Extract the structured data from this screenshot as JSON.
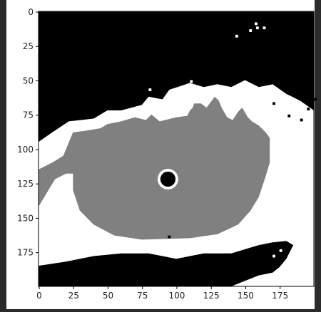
{
  "chart_data": {
    "type": "heatmap",
    "title": "",
    "xlabel": "",
    "ylabel": "",
    "xlim": [
      0,
      200
    ],
    "ylim": [
      200,
      0
    ],
    "xticks": [
      0,
      25,
      50,
      75,
      100,
      125,
      150,
      175
    ],
    "yticks": [
      0,
      25,
      50,
      75,
      100,
      125,
      150,
      175
    ],
    "grid": false,
    "classes": [
      {
        "value": 0,
        "color": "#000000"
      },
      {
        "value": 1,
        "color": "#808080"
      },
      {
        "value": 2,
        "color": "#ffffff"
      }
    ],
    "regions": {
      "upper_black": "image top rows to white band boundary",
      "white_band": [
        [
          0,
          95
        ],
        [
          10,
          88
        ],
        [
          22,
          80
        ],
        [
          40,
          78
        ],
        [
          50,
          72
        ],
        [
          60,
          72
        ],
        [
          75,
          68
        ],
        [
          80,
          62
        ],
        [
          90,
          64
        ],
        [
          95,
          57
        ],
        [
          110,
          52
        ],
        [
          120,
          55
        ],
        [
          130,
          53
        ],
        [
          140,
          55
        ],
        [
          150,
          50
        ],
        [
          160,
          55
        ],
        [
          170,
          53
        ],
        [
          180,
          60
        ],
        [
          190,
          65
        ],
        [
          200,
          72
        ]
      ],
      "gray_region": [
        [
          0,
          115
        ],
        [
          10,
          110
        ],
        [
          18,
          105
        ],
        [
          25,
          88
        ],
        [
          33,
          87
        ],
        [
          45,
          85
        ],
        [
          50,
          82
        ],
        [
          60,
          80
        ],
        [
          70,
          77
        ],
        [
          78,
          79
        ],
        [
          82,
          75
        ],
        [
          88,
          80
        ],
        [
          100,
          77
        ],
        [
          108,
          76
        ],
        [
          110,
          72
        ],
        [
          112,
          70
        ],
        [
          113,
          67
        ],
        [
          118,
          67
        ],
        [
          122,
          70
        ],
        [
          125,
          66
        ],
        [
          128,
          62
        ],
        [
          131,
          65
        ],
        [
          133,
          70
        ],
        [
          137,
          77
        ],
        [
          141,
          79
        ],
        [
          145,
          73
        ],
        [
          148,
          70
        ],
        [
          152,
          77
        ],
        [
          155,
          80
        ],
        [
          160,
          83
        ],
        [
          165,
          88
        ],
        [
          168,
          92
        ],
        [
          168,
          100
        ],
        [
          168,
          110
        ],
        [
          165,
          120
        ],
        [
          160,
          135
        ],
        [
          154,
          145
        ],
        [
          145,
          155
        ],
        [
          130,
          162
        ],
        [
          110,
          165
        ],
        [
          75,
          166
        ],
        [
          55,
          163
        ],
        [
          40,
          155
        ],
        [
          30,
          145
        ],
        [
          25,
          130
        ],
        [
          25,
          118
        ],
        [
          20,
          118
        ],
        [
          12,
          122
        ],
        [
          6,
          132
        ],
        [
          0,
          142
        ]
      ],
      "pupil_center": [
        94,
        122
      ],
      "pupil_radius": 5.5,
      "pupil_ring_radius": 7.5,
      "bottom_black": [
        [
          0,
          185
        ],
        [
          20,
          182
        ],
        [
          40,
          178
        ],
        [
          60,
          176
        ],
        [
          80,
          176
        ],
        [
          90,
          178
        ],
        [
          100,
          180
        ],
        [
          110,
          178
        ],
        [
          120,
          176
        ],
        [
          140,
          176
        ],
        [
          150,
          173
        ],
        [
          160,
          170
        ],
        [
          170,
          168
        ],
        [
          180,
          167
        ],
        [
          185,
          170
        ],
        [
          180,
          180
        ],
        [
          175,
          186
        ],
        [
          170,
          190
        ],
        [
          160,
          192
        ],
        [
          150,
          196
        ],
        [
          140,
          200
        ],
        [
          0,
          200
        ]
      ]
    },
    "specks": [
      [
        143,
        17
      ],
      [
        153,
        13
      ],
      [
        158,
        11
      ],
      [
        157,
        8
      ],
      [
        163,
        11
      ],
      [
        110,
        50
      ],
      [
        52,
        62
      ],
      [
        80,
        56
      ],
      [
        200,
        63
      ],
      [
        170,
        66
      ],
      [
        190,
        78
      ],
      [
        181,
        75
      ],
      [
        195,
        70
      ],
      [
        94,
        163
      ],
      [
        95,
        166
      ],
      [
        170,
        177
      ],
      [
        175,
        173
      ]
    ]
  }
}
